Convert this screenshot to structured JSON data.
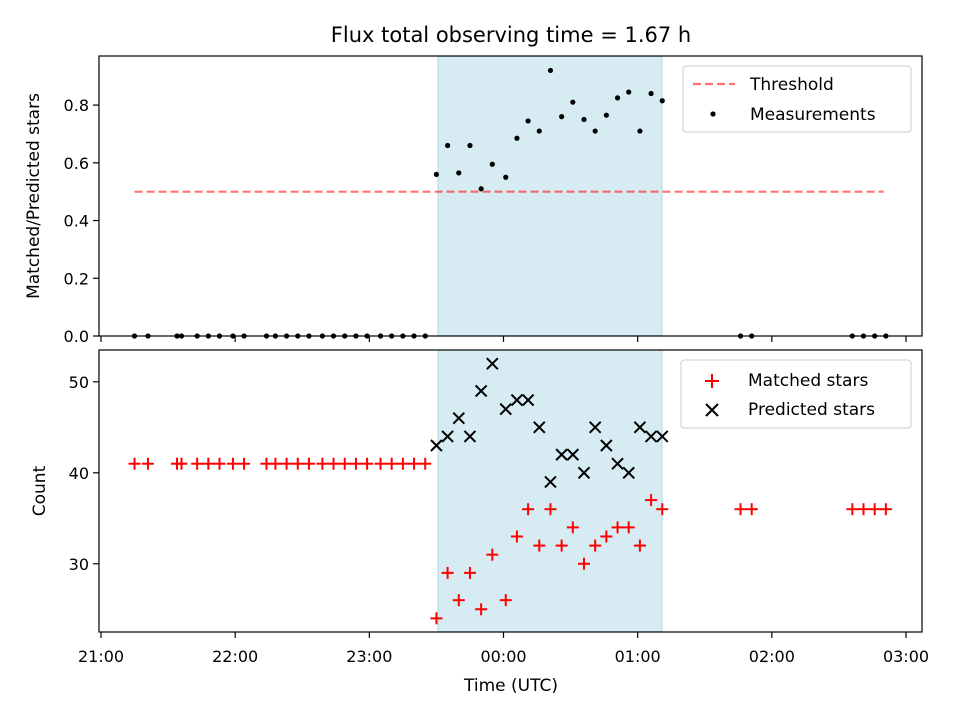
{
  "figure": {
    "title": "Flux total observing time = 1.67 h"
  },
  "colors": {
    "highlight": "#add8e6",
    "threshold": "#ff0000",
    "measurement": "#000000",
    "matched": "#ff0000",
    "predicted": "#000000"
  },
  "chart_data": [
    {
      "type": "scatter",
      "panel": "top",
      "ylabel": "Matched/Predicted stars",
      "xlim": [
        "21:00",
        "03:00"
      ],
      "ylim": [
        0,
        0.97
      ],
      "yticks": [
        "0.0",
        "0.2",
        "0.4",
        "0.6",
        "0.8"
      ],
      "grid": false,
      "legend_position": "upper right",
      "highlight_span": [
        "23:30",
        "01:09"
      ],
      "threshold": {
        "name": "Threshold",
        "value": 0.5,
        "x_range": [
          "21:15",
          "02:50"
        ]
      },
      "series": [
        {
          "name": "Measurements",
          "points": [
            [
              "21:15",
              0
            ],
            [
              "21:21",
              0
            ],
            [
              "21:34",
              0
            ],
            [
              "21:36",
              0
            ],
            [
              "21:43",
              0
            ],
            [
              "21:48",
              0
            ],
            [
              "21:53",
              0
            ],
            [
              "21:59",
              0
            ],
            [
              "22:04",
              0
            ],
            [
              "22:14",
              0
            ],
            [
              "22:18",
              0
            ],
            [
              "22:23",
              0
            ],
            [
              "22:28",
              0
            ],
            [
              "22:33",
              0
            ],
            [
              "22:39",
              0
            ],
            [
              "22:44",
              0
            ],
            [
              "22:49",
              0
            ],
            [
              "22:54",
              0
            ],
            [
              "22:59",
              0
            ],
            [
              "23:05",
              0
            ],
            [
              "23:10",
              0
            ],
            [
              "23:15",
              0
            ],
            [
              "23:20",
              0
            ],
            [
              "23:25",
              0
            ],
            [
              "23:30",
              0.56
            ],
            [
              "23:35",
              0.66
            ],
            [
              "23:40",
              0.565
            ],
            [
              "23:45",
              0.66
            ],
            [
              "23:50",
              0.51
            ],
            [
              "23:55",
              0.595
            ],
            [
              "00:01",
              0.55
            ],
            [
              "00:06",
              0.685
            ],
            [
              "00:11",
              0.745
            ],
            [
              "00:16",
              0.71
            ],
            [
              "00:21",
              0.92
            ],
            [
              "00:26",
              0.76
            ],
            [
              "00:31",
              0.81
            ],
            [
              "00:36",
              0.75
            ],
            [
              "00:41",
              0.71
            ],
            [
              "00:46",
              0.765
            ],
            [
              "00:51",
              0.825
            ],
            [
              "00:56",
              0.845
            ],
            [
              "01:01",
              0.71
            ],
            [
              "01:06",
              0.84
            ],
            [
              "01:11",
              0.815
            ],
            [
              "01:46",
              0
            ],
            [
              "01:51",
              0
            ],
            [
              "02:36",
              0
            ],
            [
              "02:41",
              0
            ],
            [
              "02:46",
              0
            ],
            [
              "02:51",
              0
            ]
          ]
        }
      ]
    },
    {
      "type": "scatter",
      "panel": "bottom",
      "ylabel": "Count",
      "xlabel": "Time (UTC)",
      "xlim": [
        "21:00",
        "03:00"
      ],
      "xticks": [
        "21:00",
        "22:00",
        "23:00",
        "00:00",
        "01:00",
        "02:00",
        "03:00"
      ],
      "ylim": [
        22.5,
        53.5
      ],
      "yticks": [
        30,
        40,
        50
      ],
      "grid": false,
      "legend_position": "upper right",
      "highlight_span": [
        "23:30",
        "01:09"
      ],
      "series": [
        {
          "name": "Matched stars",
          "marker": "+",
          "points": [
            [
              "21:15",
              41
            ],
            [
              "21:21",
              41
            ],
            [
              "21:34",
              41
            ],
            [
              "21:36",
              41
            ],
            [
              "21:43",
              41
            ],
            [
              "21:48",
              41
            ],
            [
              "21:53",
              41
            ],
            [
              "21:59",
              41
            ],
            [
              "22:04",
              41
            ],
            [
              "22:14",
              41
            ],
            [
              "22:18",
              41
            ],
            [
              "22:23",
              41
            ],
            [
              "22:28",
              41
            ],
            [
              "22:33",
              41
            ],
            [
              "22:39",
              41
            ],
            [
              "22:44",
              41
            ],
            [
              "22:49",
              41
            ],
            [
              "22:54",
              41
            ],
            [
              "22:59",
              41
            ],
            [
              "23:05",
              41
            ],
            [
              "23:10",
              41
            ],
            [
              "23:15",
              41
            ],
            [
              "23:20",
              41
            ],
            [
              "23:25",
              41
            ],
            [
              "23:30",
              24
            ],
            [
              "23:35",
              29
            ],
            [
              "23:40",
              26
            ],
            [
              "23:45",
              29
            ],
            [
              "23:50",
              25
            ],
            [
              "23:55",
              31
            ],
            [
              "00:01",
              26
            ],
            [
              "00:06",
              33
            ],
            [
              "00:11",
              36
            ],
            [
              "00:16",
              32
            ],
            [
              "00:21",
              36
            ],
            [
              "00:26",
              32
            ],
            [
              "00:31",
              34
            ],
            [
              "00:36",
              30
            ],
            [
              "00:41",
              32
            ],
            [
              "00:46",
              33
            ],
            [
              "00:51",
              34
            ],
            [
              "00:56",
              34
            ],
            [
              "01:01",
              32
            ],
            [
              "01:06",
              37
            ],
            [
              "01:11",
              36
            ],
            [
              "01:46",
              36
            ],
            [
              "01:51",
              36
            ],
            [
              "02:36",
              36
            ],
            [
              "02:41",
              36
            ],
            [
              "02:46",
              36
            ],
            [
              "02:51",
              36
            ]
          ]
        },
        {
          "name": "Predicted stars",
          "marker": "x",
          "points": [
            [
              "23:30",
              43
            ],
            [
              "23:35",
              44
            ],
            [
              "23:40",
              46
            ],
            [
              "23:45",
              44
            ],
            [
              "23:50",
              49
            ],
            [
              "23:55",
              52
            ],
            [
              "00:01",
              47
            ],
            [
              "00:06",
              48
            ],
            [
              "00:11",
              48
            ],
            [
              "00:16",
              45
            ],
            [
              "00:21",
              39
            ],
            [
              "00:26",
              42
            ],
            [
              "00:31",
              42
            ],
            [
              "00:36",
              40
            ],
            [
              "00:41",
              45
            ],
            [
              "00:46",
              43
            ],
            [
              "00:51",
              41
            ],
            [
              "00:56",
              40
            ],
            [
              "01:01",
              45
            ],
            [
              "01:06",
              44
            ],
            [
              "01:11",
              44
            ]
          ]
        }
      ]
    }
  ]
}
